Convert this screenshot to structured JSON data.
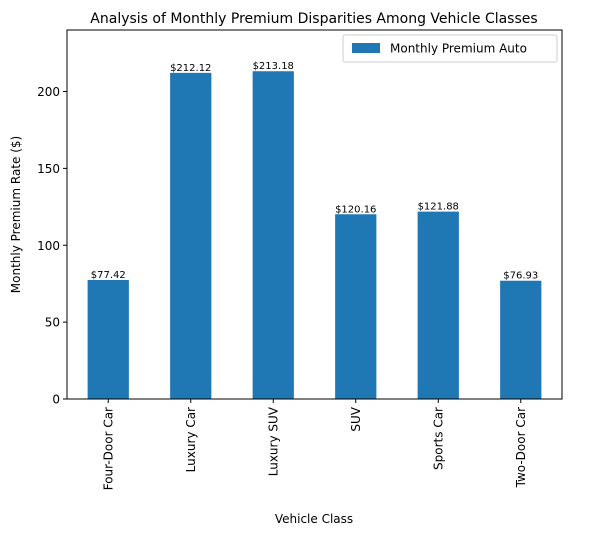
{
  "chart_data": {
    "type": "bar",
    "title": "Analysis of Monthly Premium Disparities Among Vehicle Classes",
    "xlabel": "Vehicle Class",
    "ylabel": "Monthly Premium Rate ($)",
    "categories": [
      "Four-Door Car",
      "Luxury Car",
      "Luxury SUV",
      "SUV",
      "Sports Car",
      "Two-Door Car"
    ],
    "series": [
      {
        "name": "Monthly Premium Auto",
        "values": [
          77.42,
          212.12,
          213.18,
          120.16,
          121.88,
          76.93
        ],
        "value_labels": [
          "$77.42",
          "$212.12",
          "$213.18",
          "$120.16",
          "$121.88",
          "$76.93"
        ],
        "color": "#1f77b4"
      }
    ],
    "ylim": [
      0,
      240
    ],
    "yticks": [
      0,
      50,
      100,
      150,
      200
    ],
    "grid": false,
    "legend": "top-right"
  }
}
